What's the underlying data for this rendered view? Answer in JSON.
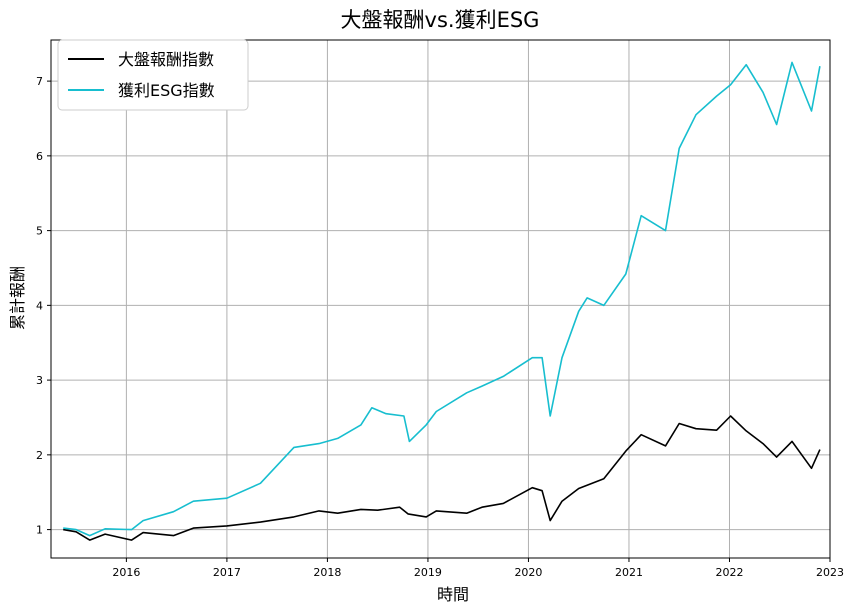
{
  "chart_data": {
    "type": "line",
    "title": "大盤報酬vs.獲利ESG",
    "xlabel": "時間",
    "ylabel": "累計報酬",
    "x_ticks": [
      "2016",
      "2017",
      "2018",
      "2019",
      "2020",
      "2021",
      "2022",
      "2023"
    ],
    "y_ticks": [
      "1",
      "2",
      "3",
      "4",
      "5",
      "6",
      "7"
    ],
    "xlim": [
      "2015-04",
      "2023-01"
    ],
    "ylim": [
      0.62,
      7.55
    ],
    "grid": true,
    "legend_position": "top-left",
    "series": [
      {
        "name": "大盤報酬指數",
        "color": "#000000",
        "points": [
          [
            "2015-05-15",
            1.0
          ],
          [
            "2015-07-01",
            0.97
          ],
          [
            "2015-08-20",
            0.86
          ],
          [
            "2015-10-15",
            0.94
          ],
          [
            "2016-01-20",
            0.86
          ],
          [
            "2016-03-01",
            0.96
          ],
          [
            "2016-06-20",
            0.92
          ],
          [
            "2016-09-01",
            1.02
          ],
          [
            "2017-01-01",
            1.05
          ],
          [
            "2017-05-01",
            1.1
          ],
          [
            "2017-09-01",
            1.17
          ],
          [
            "2017-12-01",
            1.25
          ],
          [
            "2018-02-08",
            1.22
          ],
          [
            "2018-05-01",
            1.27
          ],
          [
            "2018-07-01",
            1.26
          ],
          [
            "2018-09-20",
            1.3
          ],
          [
            "2018-10-20",
            1.21
          ],
          [
            "2018-12-25",
            1.17
          ],
          [
            "2019-02-01",
            1.25
          ],
          [
            "2019-05-20",
            1.22
          ],
          [
            "2019-07-15",
            1.3
          ],
          [
            "2019-10-01",
            1.35
          ],
          [
            "2020-01-15",
            1.56
          ],
          [
            "2020-02-20",
            1.52
          ],
          [
            "2020-03-19",
            1.12
          ],
          [
            "2020-05-01",
            1.38
          ],
          [
            "2020-07-01",
            1.55
          ],
          [
            "2020-10-01",
            1.68
          ],
          [
            "2020-12-20",
            2.05
          ],
          [
            "2021-02-15",
            2.27
          ],
          [
            "2021-05-12",
            2.12
          ],
          [
            "2021-07-01",
            2.42
          ],
          [
            "2021-09-01",
            2.35
          ],
          [
            "2021-11-15",
            2.33
          ],
          [
            "2022-01-05",
            2.52
          ],
          [
            "2022-03-01",
            2.32
          ],
          [
            "2022-05-01",
            2.15
          ],
          [
            "2022-06-20",
            1.97
          ],
          [
            "2022-08-15",
            2.18
          ],
          [
            "2022-10-25",
            1.82
          ],
          [
            "2022-11-25",
            2.07
          ]
        ]
      },
      {
        "name": "獲利ESG指數",
        "color": "#17becf",
        "points": [
          [
            "2015-05-15",
            1.02
          ],
          [
            "2015-07-01",
            1.0
          ],
          [
            "2015-08-20",
            0.92
          ],
          [
            "2015-10-15",
            1.01
          ],
          [
            "2016-01-20",
            1.0
          ],
          [
            "2016-03-01",
            1.12
          ],
          [
            "2016-06-20",
            1.24
          ],
          [
            "2016-09-01",
            1.38
          ],
          [
            "2017-01-01",
            1.42
          ],
          [
            "2017-05-01",
            1.62
          ],
          [
            "2017-09-01",
            2.1
          ],
          [
            "2017-12-01",
            2.15
          ],
          [
            "2018-02-08",
            2.22
          ],
          [
            "2018-05-01",
            2.4
          ],
          [
            "2018-06-10",
            2.63
          ],
          [
            "2018-08-01",
            2.55
          ],
          [
            "2018-10-05",
            2.52
          ],
          [
            "2018-10-25",
            2.18
          ],
          [
            "2018-12-25",
            2.4
          ],
          [
            "2019-02-01",
            2.58
          ],
          [
            "2019-05-20",
            2.83
          ],
          [
            "2019-07-15",
            2.92
          ],
          [
            "2019-10-01",
            3.05
          ],
          [
            "2020-01-15",
            3.3
          ],
          [
            "2020-02-20",
            3.3
          ],
          [
            "2020-03-19",
            2.52
          ],
          [
            "2020-05-01",
            3.3
          ],
          [
            "2020-07-01",
            3.92
          ],
          [
            "2020-08-01",
            4.1
          ],
          [
            "2020-10-01",
            4.0
          ],
          [
            "2020-12-20",
            4.42
          ],
          [
            "2021-02-15",
            5.2
          ],
          [
            "2021-05-12",
            5.0
          ],
          [
            "2021-07-01",
            6.1
          ],
          [
            "2021-09-01",
            6.55
          ],
          [
            "2021-11-15",
            6.8
          ],
          [
            "2022-01-05",
            6.95
          ],
          [
            "2022-03-01",
            7.22
          ],
          [
            "2022-05-01",
            6.85
          ],
          [
            "2022-06-20",
            6.42
          ],
          [
            "2022-08-15",
            7.25
          ],
          [
            "2022-10-25",
            6.6
          ],
          [
            "2022-11-25",
            7.2
          ]
        ]
      }
    ]
  }
}
